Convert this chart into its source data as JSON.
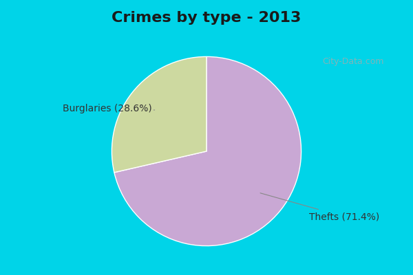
{
  "title": "Crimes by type - 2013",
  "slices": [
    {
      "label": "Thefts (71.4%)",
      "value": 71.4,
      "color": "#c9a8d4"
    },
    {
      "label": "Burglaries (28.6%)",
      "value": 28.6,
      "color": "#cdd9a0"
    }
  ],
  "background_top": "#00d4e8",
  "background_main_top": "#d8f0e8",
  "background_main_bottom": "#e8f8e0",
  "title_fontsize": 16,
  "title_color": "#1a1a1a",
  "label_fontsize": 10,
  "label_color": "#333333",
  "watermark": "City-Data.com"
}
